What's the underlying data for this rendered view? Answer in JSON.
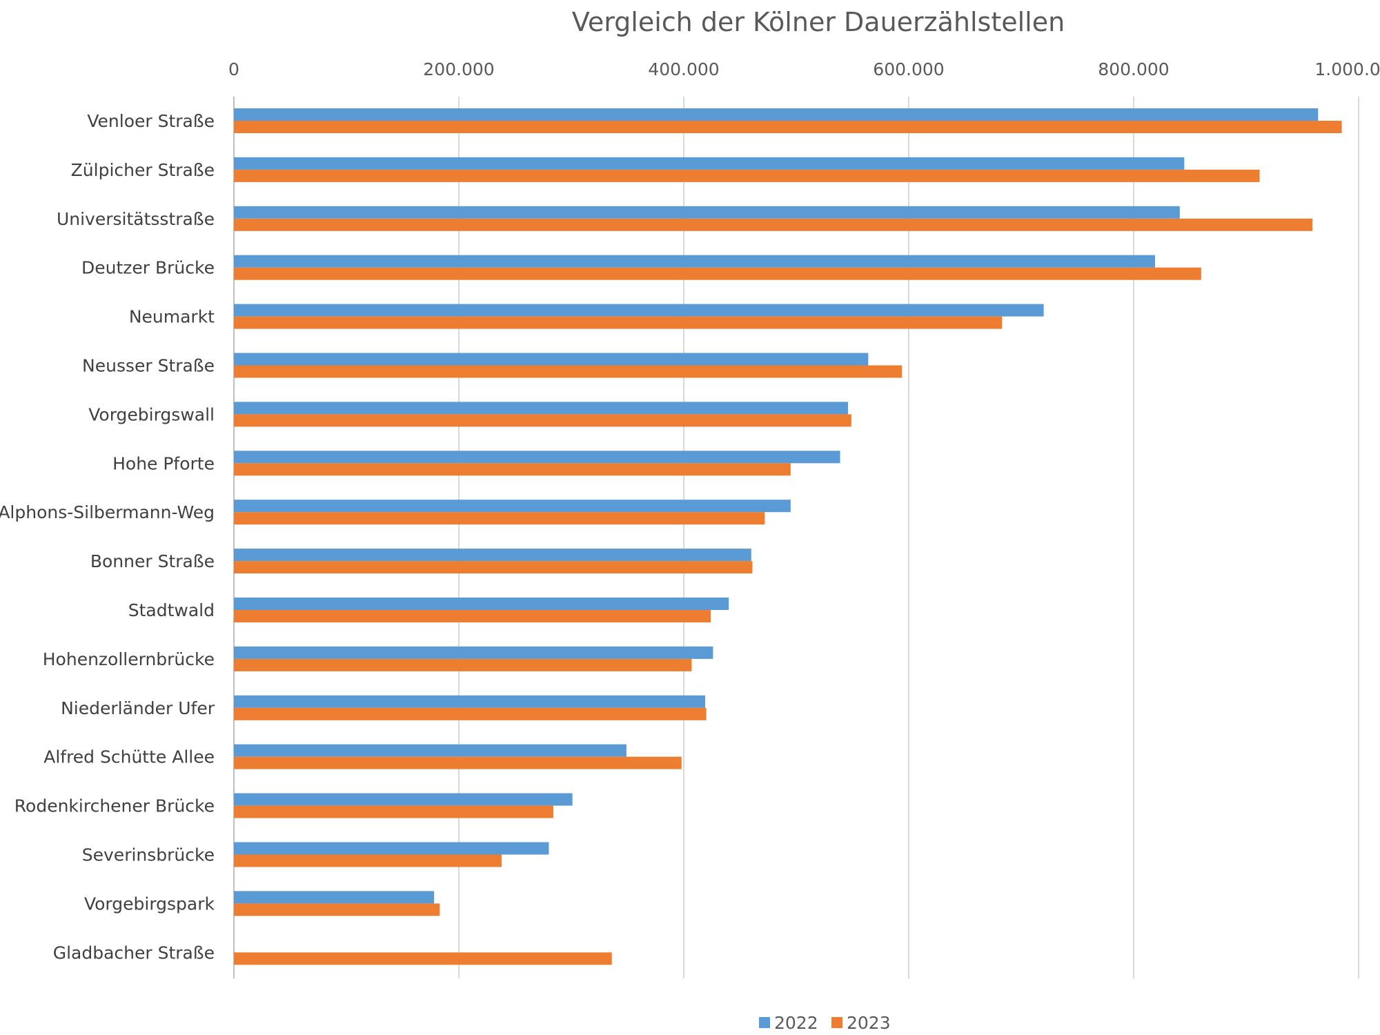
{
  "chart_data": {
    "type": "bar",
    "orientation": "horizontal",
    "title": "Vergleich der Kölner Dauerzählstellen",
    "xlabel": "",
    "ylabel": "",
    "xlim": [
      0,
      1000000
    ],
    "x_ticks": [
      "0",
      "200.000",
      "400.000",
      "600.000",
      "800.000",
      "1.000.000"
    ],
    "x_tick_values": [
      0,
      200000,
      400000,
      600000,
      800000,
      1000000
    ],
    "axis_position": "top",
    "grid": true,
    "legend_position": "bottom",
    "categories": [
      "Venloer Straße",
      "Zülpicher Straße",
      "Universitätsstraße",
      "Deutzer Brücke",
      "Neumarkt",
      "Neusser Straße",
      "Vorgebirgswall",
      "Hohe Pforte",
      "Alphons-Silbermann-Weg",
      "Bonner Straße",
      "Stadtwald",
      "Hohenzollernbrücke",
      "Niederländer Ufer",
      "Alfred Schütte Allee",
      "Rodenkirchener Brücke",
      "Severinsbrücke",
      "Vorgebirgspark",
      "Gladbacher Straße"
    ],
    "series": [
      {
        "name": "2022",
        "color": "#5B9BD5",
        "values": [
          964000,
          845000,
          841000,
          819000,
          720000,
          564000,
          546000,
          539000,
          495000,
          460000,
          440000,
          426000,
          419000,
          349000,
          301000,
          280000,
          178000,
          null
        ]
      },
      {
        "name": "2023",
        "color": "#ED7D31",
        "values": [
          985000,
          912000,
          959000,
          860000,
          683000,
          594000,
          549000,
          495000,
          472000,
          461000,
          424000,
          407000,
          420000,
          398000,
          284000,
          238000,
          183000,
          336000
        ]
      }
    ]
  }
}
